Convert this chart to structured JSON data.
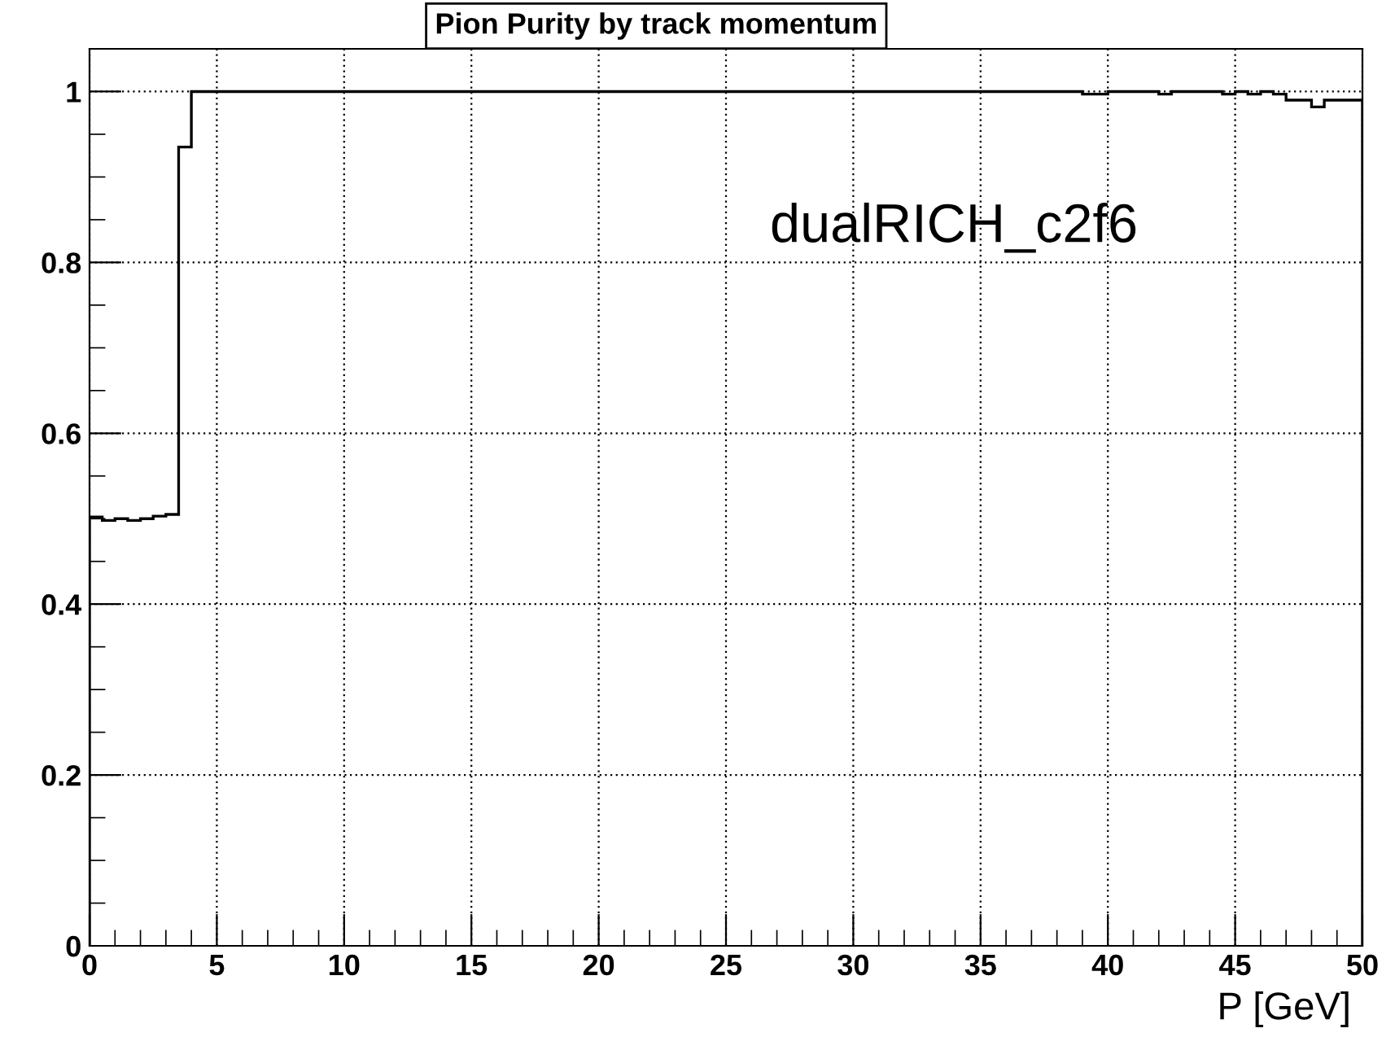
{
  "chart_data": {
    "type": "histogram",
    "title": "Pion Purity by track momentum",
    "xlabel": "P [GeV]",
    "bins": [
      0,
      0.5,
      1,
      1.5,
      2,
      2.5,
      3,
      3.5,
      4,
      4.5,
      5,
      5.5,
      6,
      6.5,
      7,
      7.5,
      8,
      8.5,
      9,
      9.5,
      10,
      10.5,
      11,
      11.5,
      12,
      12.5,
      13,
      13.5,
      14,
      14.5,
      15,
      15.5,
      16,
      16.5,
      17,
      17.5,
      18,
      18.5,
      19,
      19.5,
      20,
      20.5,
      21,
      21.5,
      22,
      22.5,
      23,
      23.5,
      24,
      24.5,
      25,
      25.5,
      26,
      26.5,
      27,
      27.5,
      28,
      28.5,
      29,
      29.5,
      30,
      30.5,
      31,
      31.5,
      32,
      32.5,
      33,
      33.5,
      34,
      34.5,
      35,
      35.5,
      36,
      36.5,
      37,
      37.5,
      38,
      38.5,
      39,
      39.5,
      40,
      40.5,
      41,
      41.5,
      42,
      42.5,
      43,
      43.5,
      44,
      44.5,
      45,
      45.5,
      46,
      46.5,
      47,
      47.5,
      48,
      48.5,
      49,
      49.5,
      50
    ],
    "values": [
      0.502,
      0.498,
      0.5,
      0.498,
      0.5,
      0.503,
      0.505,
      0.935,
      1,
      1,
      1,
      1,
      1,
      1,
      1,
      1,
      1,
      1,
      1,
      1,
      1,
      1,
      1,
      1,
      1,
      1,
      1,
      1,
      1,
      1,
      1,
      1,
      1,
      1,
      1,
      1,
      1,
      1,
      1,
      1,
      1,
      1,
      1,
      1,
      1,
      1,
      1,
      1,
      1,
      1,
      1,
      1,
      1,
      1,
      1,
      1,
      1,
      1,
      1,
      1,
      1,
      1,
      1,
      1,
      1,
      1,
      1,
      1,
      1,
      1,
      1,
      1,
      1,
      1,
      1,
      1,
      1,
      1,
      0.997,
      0.997,
      1,
      1,
      1,
      1,
      0.997,
      1,
      1,
      1,
      1,
      0.997,
      1,
      0.997,
      1,
      0.997,
      0.99,
      0.99,
      0.982,
      0.99,
      0.99,
      0.99
    ],
    "color": "#000000",
    "xlim": [
      0,
      50
    ],
    "xticks": [
      0,
      5,
      10,
      15,
      20,
      25,
      30,
      35,
      40,
      45,
      50
    ],
    "ylim": [
      0,
      1.05
    ],
    "yticks": [
      0,
      0.2,
      0.4,
      0.6,
      0.8,
      1
    ],
    "grid": true,
    "annotations": [
      "dualRICH_c2f6"
    ]
  }
}
